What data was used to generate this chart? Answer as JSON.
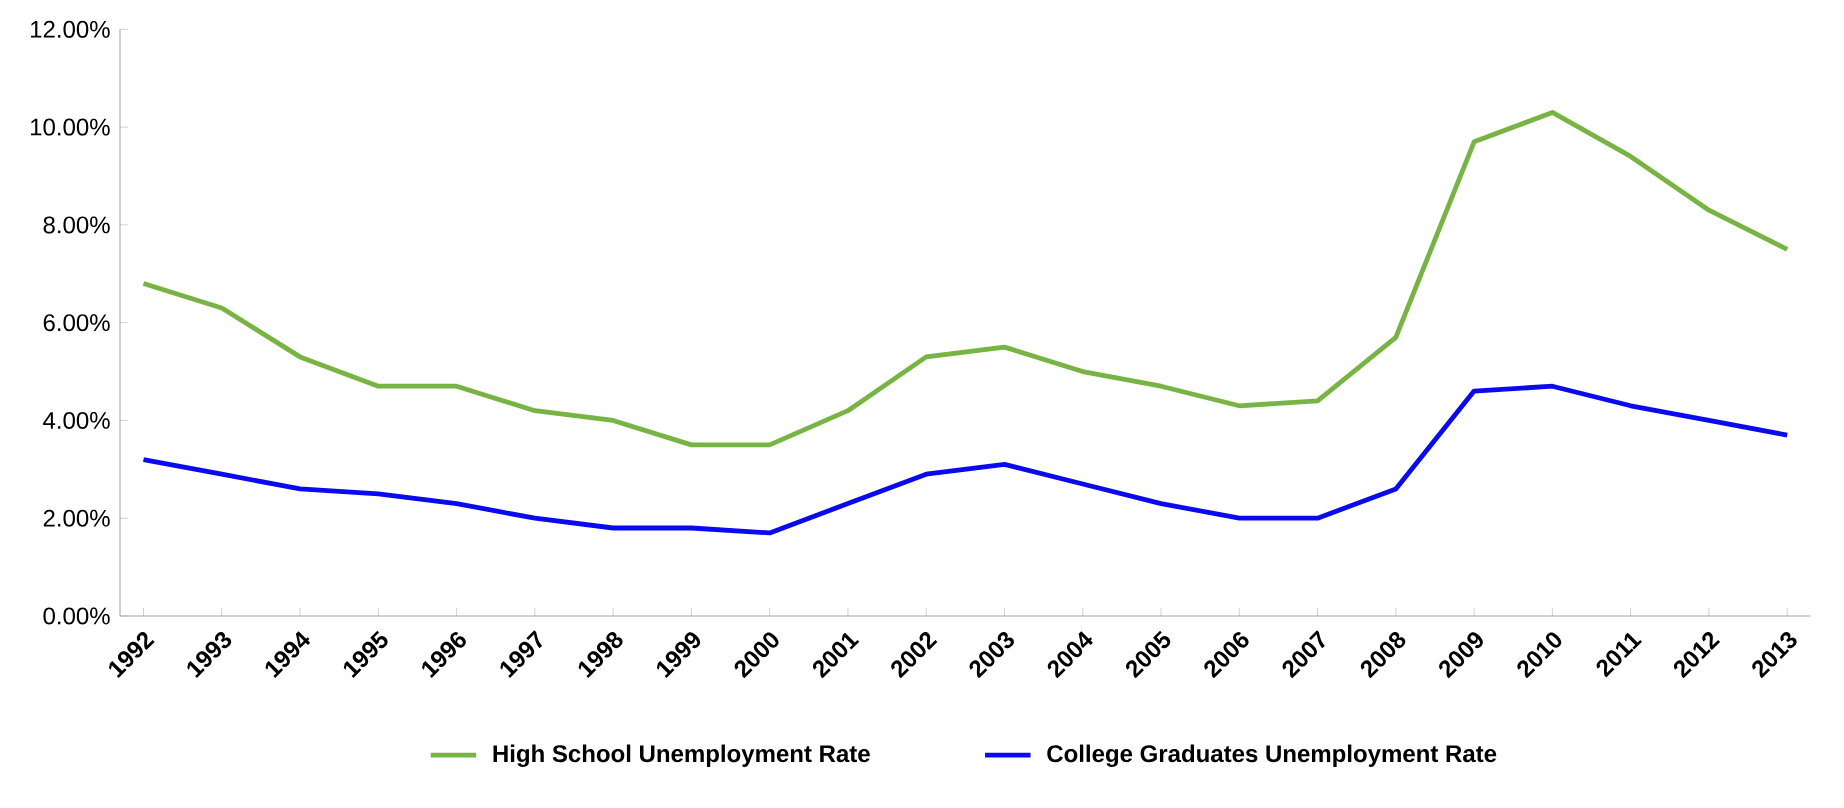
{
  "chart_data": {
    "type": "line",
    "categories": [
      "1992",
      "1993",
      "1994",
      "1995",
      "1996",
      "1997",
      "1998",
      "1999",
      "2000",
      "2001",
      "2002",
      "2003",
      "2004",
      "2005",
      "2006",
      "2007",
      "2008",
      "2009",
      "2010",
      "2011",
      "2012",
      "2013"
    ],
    "series": [
      {
        "name": "High School Unemployment Rate",
        "color": "#77b443",
        "values": [
          6.8,
          6.3,
          5.3,
          4.7,
          4.7,
          4.2,
          4.0,
          3.5,
          3.5,
          4.2,
          5.3,
          5.5,
          5.0,
          4.7,
          4.3,
          4.4,
          5.7,
          9.7,
          10.3,
          9.4,
          8.3,
          7.5
        ]
      },
      {
        "name": "College Graduates Unemployment Rate",
        "color": "#0a0aee",
        "values": [
          3.2,
          2.9,
          2.6,
          2.5,
          2.3,
          2.0,
          1.8,
          1.8,
          1.7,
          2.3,
          2.9,
          3.1,
          2.7,
          2.3,
          2.0,
          2.0,
          2.6,
          4.6,
          4.7,
          4.3,
          4.0,
          3.7
        ]
      }
    ],
    "ylim": [
      0,
      12
    ],
    "yticks": [
      {
        "value": 0,
        "label": "0.00%"
      },
      {
        "value": 2,
        "label": "2.00%"
      },
      {
        "value": 4,
        "label": "4.00%"
      },
      {
        "value": 6,
        "label": "6.00%"
      },
      {
        "value": 8,
        "label": "8.00%"
      },
      {
        "value": 10,
        "label": "10.00%"
      },
      {
        "value": 12,
        "label": "12.00%"
      }
    ],
    "grid": false,
    "legend": "bottom",
    "marker": "none",
    "line_style": "solid"
  }
}
